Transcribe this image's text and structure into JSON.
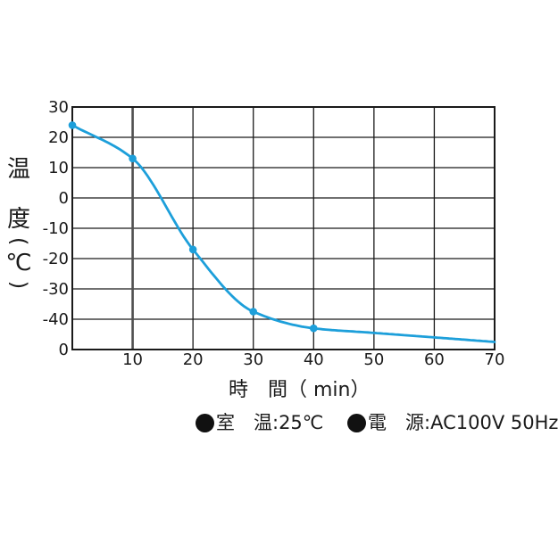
{
  "chart_data": {
    "type": "line",
    "title": "",
    "xlabel": "時　間（ min）",
    "ylabel": "温度（℃）",
    "ylabel_chars": [
      "温",
      "度",
      "(",
      "℃",
      ")"
    ],
    "x": [
      0,
      10,
      20,
      30,
      40,
      50,
      60,
      70
    ],
    "series": [
      {
        "values": [
          24,
          13,
          -17,
          -37.5,
          -43,
          -44.5,
          -46,
          -47.5
        ],
        "color": "#1d9fda",
        "markers_at_x": [
          0,
          10,
          20,
          30,
          40
        ]
      }
    ],
    "xlim": [
      0,
      70
    ],
    "ylim": [
      -50,
      30
    ],
    "x_ticks": [
      10,
      20,
      30,
      40,
      50,
      60,
      70
    ],
    "y_ticks": [
      {
        "value": 30,
        "label": "30"
      },
      {
        "value": 20,
        "label": "20"
      },
      {
        "value": 10,
        "label": "10"
      },
      {
        "value": 0,
        "label": "0"
      },
      {
        "value": -10,
        "label": "-10"
      },
      {
        "value": -20,
        "label": "-20"
      },
      {
        "value": -30,
        "label": "-30"
      },
      {
        "value": -40,
        "label": "-40"
      },
      {
        "value": -50,
        "label": "0"
      }
    ],
    "grid": true,
    "grid_color": "#1a1a1a",
    "emphasized_x_gridline": 10,
    "legend_position": "none"
  },
  "footnotes": {
    "items": [
      {
        "bullet": "●",
        "text": "室　温:25℃"
      },
      {
        "bullet": "●",
        "text": "電　源:AC100V 50Hz"
      }
    ]
  }
}
